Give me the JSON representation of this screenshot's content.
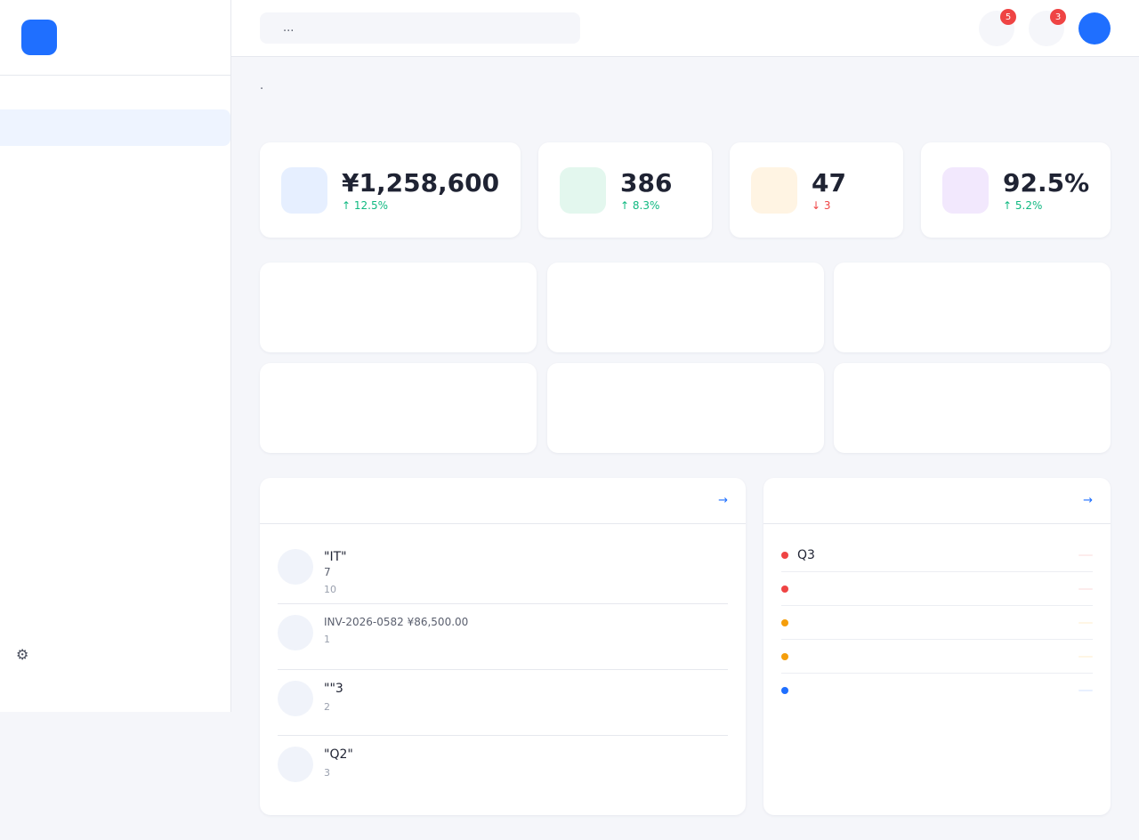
{
  "brand": {
    "logo_icon": "",
    "name": "",
    "accent": ""
  },
  "sidebar": {
    "sections": [
      {
        "label": "",
        "items": [
          {
            "icon": "",
            "label": "",
            "active": true
          },
          {
            "icon": "",
            "label": ""
          },
          {
            "icon": "",
            "label": ""
          },
          {
            "icon": "",
            "label": ""
          },
          {
            "icon": "",
            "label": ""
          },
          {
            "icon": "",
            "label": ""
          }
        ]
      },
      {
        "label": "",
        "items": [
          {
            "icon": "",
            "label": ""
          },
          {
            "icon": "",
            "label": ""
          },
          {
            "icon": "",
            "label": ""
          },
          {
            "icon": "",
            "label": ""
          }
        ]
      },
      {
        "label": "",
        "items": [
          {
            "icon": "",
            "label": ""
          },
          {
            "icon": "",
            "label": ""
          },
          {
            "icon": "⚙",
            "label": ""
          }
        ]
      }
    ]
  },
  "header": {
    "search_icon": "",
    "search_placeholder": "...",
    "notifications": {
      "icon": "",
      "badge": "5"
    },
    "messages": {
      "icon": "",
      "badge": "3"
    },
    "avatar_icon": ""
  },
  "page": {
    "title": "",
    "subtitle": " · "
  },
  "stats": [
    {
      "icon": "",
      "value": "¥1,258,600",
      "label": "",
      "trend": "↑ 12.5% ",
      "trend_dir": "up",
      "icon_bg": "#e6efff",
      "icon_color": "#1f6fff"
    },
    {
      "icon": "",
      "value": "386",
      "label": "",
      "trend": "↑ 8.3% ",
      "trend_dir": "up",
      "icon_bg": "#e3f7ee",
      "icon_color": "#10b981"
    },
    {
      "icon": "",
      "value": "47",
      "label": "",
      "trend": "↓ 3 ",
      "trend_dir": "down",
      "icon_bg": "#fff4e3",
      "icon_color": "#f59e0b"
    },
    {
      "icon": "",
      "value": "92.5%",
      "label": "",
      "trend": "↑ 5.2% ",
      "trend_dir": "up",
      "icon_bg": "#f2e8fd",
      "icon_color": "#8b5cf6"
    }
  ],
  "quick_actions": [
    {
      "icon": "",
      "label": ""
    },
    {
      "icon": "",
      "label": ""
    },
    {
      "icon": "",
      "label": ""
    },
    {
      "icon": "",
      "label": ""
    },
    {
      "icon": "",
      "label": ""
    },
    {
      "icon": "",
      "label": ""
    }
  ],
  "activity_panel": {
    "title_icon": "",
    "title": "",
    "link": " →",
    "items": [
      {
        "icon": "",
        "title": "\"IT\"",
        "desc": "7",
        "time": "10"
      },
      {
        "icon": "",
        "title": "",
        "desc": " INV-2026-0582 ¥86,500.00",
        "time": "1"
      },
      {
        "icon": "",
        "title": "\"\"3",
        "desc": "",
        "time": "2"
      },
      {
        "icon": "",
        "title": "\"Q2\"",
        "desc": " ",
        "time": "3"
      }
    ]
  },
  "todo_panel": {
    "title_icon": "",
    "title": "",
    "link": " →",
    "items": [
      {
        "text": "Q3",
        "tag": "",
        "dot": "#ef4444",
        "tag_bg": "#fdecec",
        "tag_color": "#ef4444"
      },
      {
        "text": "",
        "tag": "",
        "dot": "#ef4444",
        "tag_bg": "#fdecec",
        "tag_color": "#ef4444"
      },
      {
        "text": "",
        "tag": "",
        "dot": "#f59e0b",
        "tag_bg": "#fff6e5",
        "tag_color": "#f59e0b"
      },
      {
        "text": "",
        "tag": "",
        "dot": "#f59e0b",
        "tag_bg": "#fff6e5",
        "tag_color": "#f59e0b"
      },
      {
        "text": "",
        "tag": "",
        "dot": "#1f6fff",
        "tag_bg": "#e8f0ff",
        "tag_color": "#1f6fff"
      }
    ]
  }
}
